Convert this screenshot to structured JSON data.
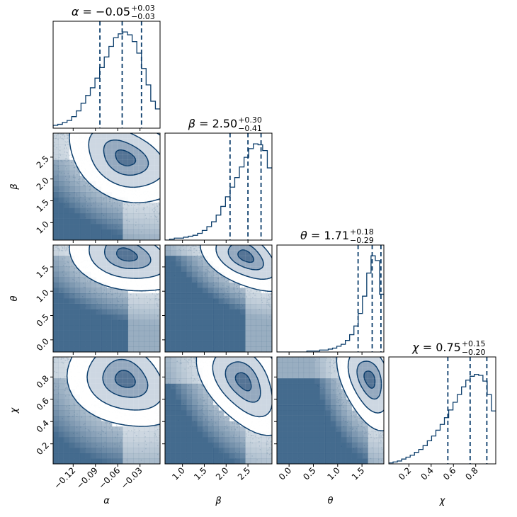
{
  "figure": {
    "type": "corner plot"
  },
  "colors": {
    "main": "#0b3d6b",
    "axes": "#000000",
    "background": "#ffffff"
  },
  "chart_data": {
    "type": "corner",
    "parameters": [
      {
        "key": "alpha",
        "label": "α",
        "ticks": [
          "−0.12",
          "−0.09",
          "−0.06",
          "−0.03"
        ],
        "tick_values": [
          -0.12,
          -0.09,
          -0.06,
          -0.03
        ],
        "range": [
          -0.147,
          -0.003
        ]
      },
      {
        "key": "beta",
        "label": "β",
        "ticks": [
          "1.0",
          "1.5",
          "2.0",
          "2.5"
        ],
        "tick_values": [
          1.0,
          1.5,
          2.0,
          2.5
        ],
        "range": [
          0.6,
          3.05
        ]
      },
      {
        "key": "theta",
        "label": "θ",
        "ticks": [
          "0.0",
          "0.5",
          "1.0",
          "1.5"
        ],
        "tick_values": [
          0.0,
          0.5,
          1.0,
          1.5
        ],
        "range": [
          -0.25,
          1.95
        ]
      },
      {
        "key": "chi",
        "label": "χ",
        "ticks": [
          "0.2",
          "0.4",
          "0.6",
          "0.8"
        ],
        "tick_values": [
          0.2,
          0.4,
          0.6,
          0.8
        ],
        "range": [
          0.02,
          0.98
        ]
      }
    ],
    "titles": [
      {
        "param": "α",
        "eq": " = ",
        "value": "−0.05",
        "plus": "+0.03",
        "minus": "−0.03"
      },
      {
        "param": "β",
        "eq": " = ",
        "value": "2.50",
        "plus": "+0.30",
        "minus": "−0.41"
      },
      {
        "param": "θ",
        "eq": " = ",
        "value": "1.71",
        "plus": "+0.18",
        "minus": "−0.29"
      },
      {
        "param": "χ",
        "eq": " = ",
        "value": "0.75",
        "plus": "+0.15",
        "minus": "−0.20"
      }
    ],
    "quantiles": [
      [
        -0.084,
        -0.054,
        -0.028
      ],
      [
        2.09,
        2.5,
        2.8
      ],
      [
        1.42,
        1.71,
        1.89
      ],
      [
        0.55,
        0.75,
        0.9
      ]
    ],
    "histograms": [
      [
        0.03,
        0.04,
        0.06,
        0.08,
        0.12,
        0.18,
        0.26,
        0.34,
        0.42,
        0.52,
        0.63,
        0.74,
        0.85,
        0.94,
        0.98,
        1.0,
        0.97,
        0.9,
        0.78,
        0.62,
        0.45,
        0.28,
        0.2
      ],
      [
        0.0,
        0.01,
        0.02,
        0.02,
        0.03,
        0.04,
        0.05,
        0.07,
        0.1,
        0.14,
        0.19,
        0.26,
        0.35,
        0.45,
        0.55,
        0.65,
        0.76,
        0.86,
        0.95,
        1.0,
        0.99,
        0.93,
        0.75
      ],
      [
        0.0,
        0.0,
        0.0,
        0.0,
        0.0,
        0.0,
        0.0,
        0.01,
        0.01,
        0.01,
        0.02,
        0.02,
        0.03,
        0.04,
        0.06,
        0.08,
        0.12,
        0.18,
        0.27,
        0.4,
        0.58,
        0.82,
        1.0,
        0.95,
        0.6
      ],
      [
        0.01,
        0.02,
        0.03,
        0.05,
        0.07,
        0.09,
        0.12,
        0.15,
        0.19,
        0.24,
        0.29,
        0.35,
        0.41,
        0.48,
        0.56,
        0.64,
        0.72,
        0.8,
        0.87,
        0.91,
        0.93,
        0.92,
        0.86,
        0.72,
        0.55
      ]
    ],
    "modes": [
      {
        "mean": [
          -0.05,
          2.48
        ],
        "sd": [
          0.03,
          0.4
        ],
        "rho": -0.35
      },
      {
        "mean": [
          -0.048,
          1.75
        ],
        "sd": [
          0.031,
          0.3
        ],
        "rho": -0.3
      },
      {
        "mean": [
          2.45,
          1.72
        ],
        "sd": [
          0.4,
          0.28
        ],
        "rho": -0.45
      },
      {
        "mean": [
          -0.05,
          0.78
        ],
        "sd": [
          0.03,
          0.17
        ],
        "rho": -0.2
      },
      {
        "mean": [
          2.4,
          0.76
        ],
        "sd": [
          0.4,
          0.18
        ],
        "rho": -0.45
      },
      {
        "mean": [
          1.66,
          0.78
        ],
        "sd": [
          0.25,
          0.17
        ],
        "rho": -0.35
      }
    ],
    "grid": false,
    "legend": "none"
  }
}
